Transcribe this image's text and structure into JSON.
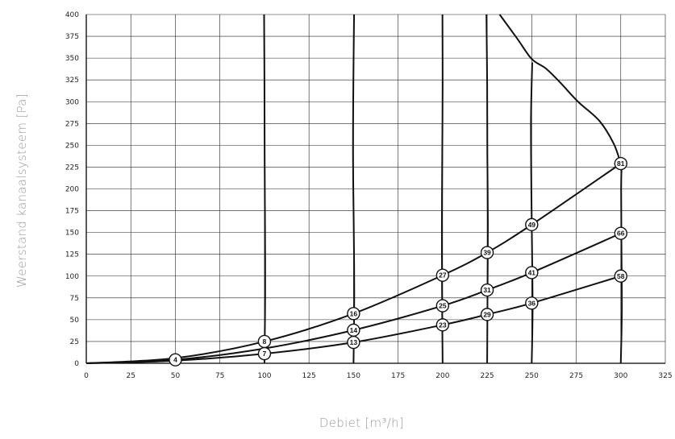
{
  "chart_data": {
    "type": "line",
    "xlabel": "Debiet [m³/h]",
    "ylabel": "Weerstand kanaalsysteem [Pa]",
    "xlim": [
      0,
      325
    ],
    "ylim": [
      0,
      400
    ],
    "x_ticks": [
      "0",
      "25",
      "50",
      "75",
      "100",
      "125",
      "150",
      "175",
      "200",
      "225",
      "250",
      "275",
      "300",
      "325"
    ],
    "y_ticks": [
      "0",
      "25",
      "50",
      "75",
      "100",
      "125",
      "150",
      "175",
      "200",
      "225",
      "250",
      "275",
      "300",
      "325",
      "350",
      "375",
      "400"
    ],
    "grid": true,
    "system_curves": [
      {
        "points": [
          [
            0,
            0
          ],
          [
            50,
            6
          ],
          [
            100,
            25
          ],
          [
            150,
            57
          ],
          [
            200,
            101
          ],
          [
            225,
            127
          ],
          [
            250,
            159
          ],
          [
            300,
            229
          ]
        ]
      },
      {
        "points": [
          [
            0,
            0
          ],
          [
            50,
            4
          ],
          [
            100,
            17
          ],
          [
            150,
            38
          ],
          [
            200,
            66
          ],
          [
            225,
            84
          ],
          [
            250,
            104
          ],
          [
            300,
            149
          ]
        ]
      },
      {
        "points": [
          [
            0,
            0
          ],
          [
            50,
            3
          ],
          [
            100,
            11
          ],
          [
            150,
            24
          ],
          [
            200,
            44
          ],
          [
            225,
            56
          ],
          [
            250,
            69
          ],
          [
            300,
            100
          ]
        ]
      }
    ],
    "flow_lines": [
      {
        "points": [
          [
            100,
            0
          ],
          [
            100.4,
            80
          ],
          [
            100.3,
            160
          ],
          [
            100.1,
            240
          ],
          [
            100,
            320
          ],
          [
            99.8,
            400
          ]
        ]
      },
      {
        "points": [
          [
            150,
            0
          ],
          [
            150.4,
            80
          ],
          [
            150.1,
            160
          ],
          [
            149.7,
            240
          ],
          [
            149.9,
            320
          ],
          [
            150.3,
            400
          ]
        ]
      },
      {
        "points": [
          [
            200,
            0
          ],
          [
            199.7,
            80
          ],
          [
            199.6,
            160
          ],
          [
            199.8,
            240
          ],
          [
            200,
            320
          ],
          [
            199.9,
            400
          ]
        ]
      },
      {
        "points": [
          [
            225,
            0
          ],
          [
            225.2,
            80
          ],
          [
            225.4,
            160
          ],
          [
            225.1,
            240
          ],
          [
            225,
            320
          ],
          [
            224.6,
            400
          ]
        ]
      },
      {
        "points": [
          [
            250,
            0
          ],
          [
            250.5,
            60
          ],
          [
            250.2,
            130
          ],
          [
            249.8,
            200
          ],
          [
            249.6,
            280
          ],
          [
            250.3,
            345
          ]
        ]
      },
      {
        "points": [
          [
            300,
            0
          ],
          [
            300.6,
            60
          ],
          [
            300.4,
            130
          ],
          [
            300.2,
            200
          ],
          [
            300.5,
            229
          ]
        ]
      }
    ],
    "envelope_curve": {
      "points": [
        [
          232,
          400
        ],
        [
          242,
          372
        ],
        [
          250,
          349
        ],
        [
          258,
          338
        ],
        [
          266,
          322
        ],
        [
          276,
          300
        ],
        [
          288,
          278
        ],
        [
          296,
          252
        ],
        [
          300,
          229
        ]
      ]
    },
    "markers": [
      {
        "label": "4",
        "x": 50,
        "y": 4
      },
      {
        "label": "8",
        "x": 100,
        "y": 25
      },
      {
        "label": "7",
        "x": 100,
        "y": 11
      },
      {
        "label": "16",
        "x": 150,
        "y": 57
      },
      {
        "label": "14",
        "x": 150,
        "y": 38
      },
      {
        "label": "13",
        "x": 150,
        "y": 24
      },
      {
        "label": "27",
        "x": 200,
        "y": 101
      },
      {
        "label": "25",
        "x": 200,
        "y": 66
      },
      {
        "label": "23",
        "x": 200,
        "y": 44
      },
      {
        "label": "39",
        "x": 225,
        "y": 127
      },
      {
        "label": "31",
        "x": 225,
        "y": 84
      },
      {
        "label": "29",
        "x": 225,
        "y": 56
      },
      {
        "label": "49",
        "x": 250,
        "y": 159
      },
      {
        "label": "41",
        "x": 250,
        "y": 104
      },
      {
        "label": "36",
        "x": 250,
        "y": 69
      },
      {
        "label": "81",
        "x": 300,
        "y": 229
      },
      {
        "label": "66",
        "x": 300,
        "y": 149
      },
      {
        "label": "58",
        "x": 300,
        "y": 100
      }
    ]
  }
}
